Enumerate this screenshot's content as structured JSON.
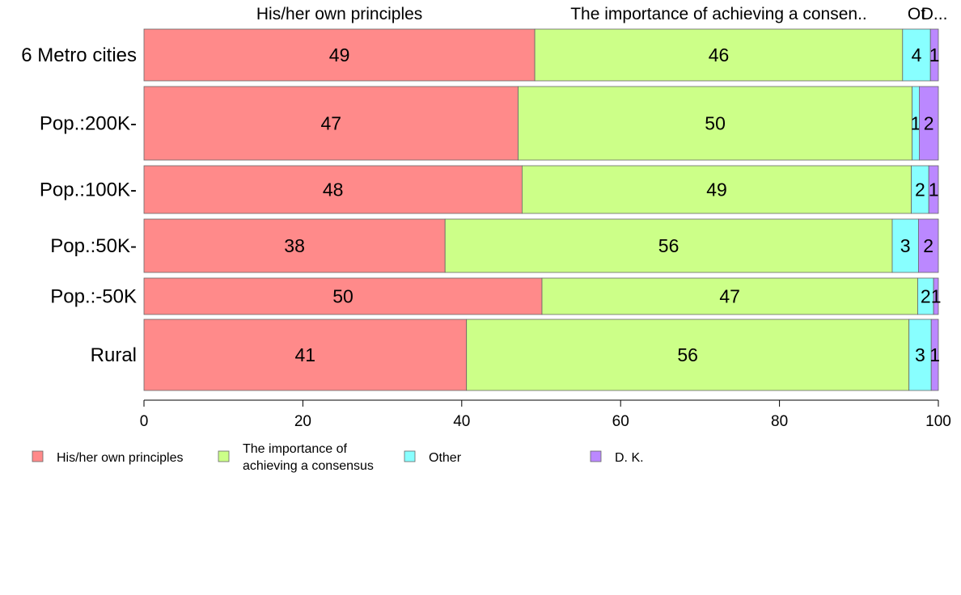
{
  "chart_data": {
    "type": "bar",
    "orientation": "horizontal",
    "stacked": true,
    "categories": [
      "6 Metro cities",
      "Pop.:200K-",
      "Pop.:100K-",
      "Pop.:50K-",
      "Pop.:-50K",
      "Rural"
    ],
    "series": [
      {
        "name": "His/her own principles",
        "values": [
          49.2,
          47.1,
          47.6,
          37.9,
          50.1,
          40.6
        ],
        "labels": [
          "49",
          "47",
          "48",
          "38",
          "50",
          "41"
        ],
        "color": "#FF8A8A"
      },
      {
        "name": "The importance of achieving a consensus",
        "values": [
          46.3,
          49.6,
          49.0,
          56.3,
          47.3,
          55.7
        ],
        "labels": [
          "46",
          "50",
          "49",
          "56",
          "47",
          "56"
        ],
        "color": "#CCFF88"
      },
      {
        "name": "Other",
        "values": [
          3.5,
          0.9,
          2.2,
          3.3,
          2.0,
          2.8
        ],
        "labels": [
          "4",
          "1",
          "2",
          "3",
          "2",
          "3"
        ],
        "color": "#88FFFF"
      },
      {
        "name": "D. K.",
        "values": [
          1.0,
          2.4,
          1.2,
          2.5,
          0.6,
          0.9
        ],
        "labels": [
          "1",
          "2",
          "1",
          "2",
          "1",
          "1"
        ],
        "color": "#BB88FF"
      }
    ],
    "column_headers": [
      "His/her own principles",
      "The importance of achieving a consen..",
      "Ot",
      "D..."
    ],
    "legend_labels": [
      [
        "His/her own principles"
      ],
      [
        "The importance of",
        "achieving a consensus"
      ],
      [
        "Other"
      ],
      [
        "D. K."
      ]
    ],
    "x_ticks": [
      "0",
      "20",
      "40",
      "60",
      "80",
      "100"
    ],
    "xlim": [
      0,
      100
    ],
    "legend_position": "bottom",
    "grid": false
  }
}
